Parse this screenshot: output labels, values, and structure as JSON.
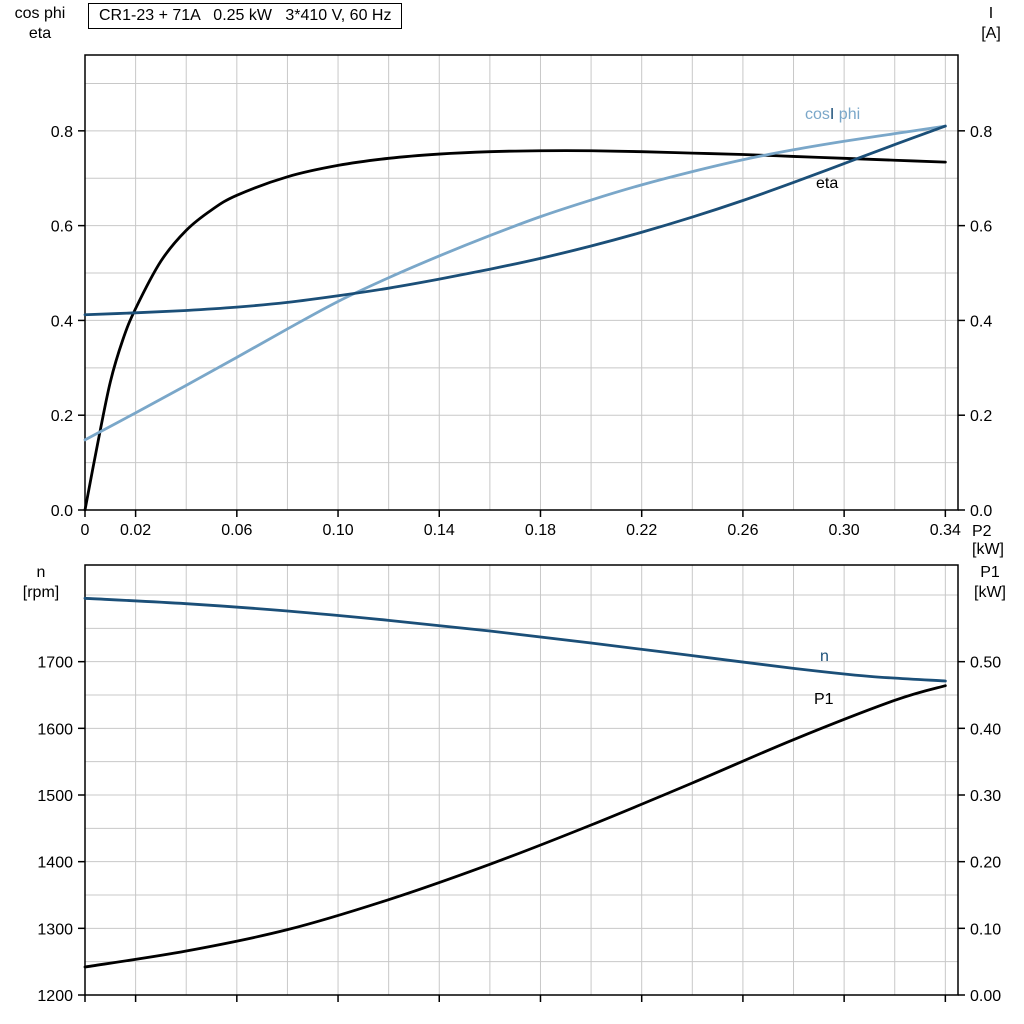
{
  "header": {
    "title": "CR1-23 + 71A   0.25 kW   3*410 V, 60 Hz"
  },
  "axes": {
    "top_left": {
      "line1": "cos phi",
      "line2": "eta"
    },
    "top_right": {
      "line1": "I",
      "line2": "[A]"
    },
    "x_label": "P2 [kW]",
    "bottom_left": {
      "line1": "n",
      "line2": "[rpm]"
    },
    "bottom_right": {
      "line1": "P1",
      "line2": "[kW]"
    }
  },
  "series_labels": {
    "cos_part": "cos",
    "current": "I",
    "phi_part": " phi",
    "eta": "eta",
    "n": "n",
    "p1": "P1"
  },
  "colors": {
    "black": "#000000",
    "dark_blue": "#1b4f78",
    "light_blue": "#7aa7c9",
    "grid": "#c8c8c8",
    "background": "#ffffff"
  },
  "chart_data": [
    {
      "type": "line",
      "title": "CR1-23 + 71A   0.25 kW   3*410 V, 60 Hz",
      "grid": {
        "x_step": 0.02,
        "y_step": 0.1
      },
      "x_axis": {
        "label": "P2 [kW]",
        "range": [
          0,
          0.345
        ],
        "ticks": [
          [
            0,
            "0"
          ],
          [
            0.02,
            "0.02"
          ],
          [
            0.06,
            "0.06"
          ],
          [
            0.1,
            "0.10"
          ],
          [
            0.14,
            "0.14"
          ],
          [
            0.18,
            "0.18"
          ],
          [
            0.22,
            "0.22"
          ],
          [
            0.26,
            "0.26"
          ],
          [
            0.3,
            "0.30"
          ],
          [
            0.34,
            "0.34"
          ]
        ]
      },
      "y_axis_left": {
        "label": "cos phi / eta",
        "range": [
          0,
          0.96
        ],
        "ticks": [
          [
            0,
            "0.0"
          ],
          [
            0.2,
            "0.2"
          ],
          [
            0.4,
            "0.4"
          ],
          [
            0.6,
            "0.6"
          ],
          [
            0.8,
            "0.8"
          ]
        ]
      },
      "y_axis_right": {
        "label": "I [A]",
        "range": [
          0,
          0.96
        ],
        "ticks": [
          [
            0,
            "0.0"
          ],
          [
            0.2,
            "0.2"
          ],
          [
            0.4,
            "0.4"
          ],
          [
            0.6,
            "0.6"
          ],
          [
            0.8,
            "0.8"
          ]
        ]
      },
      "series": [
        {
          "name": "eta",
          "axis": "left",
          "color": "#000000",
          "points": [
            [
              0,
              0
            ],
            [
              0.005,
              0.14
            ],
            [
              0.01,
              0.27
            ],
            [
              0.015,
              0.36
            ],
            [
              0.02,
              0.425
            ],
            [
              0.03,
              0.525
            ],
            [
              0.04,
              0.59
            ],
            [
              0.05,
              0.633
            ],
            [
              0.06,
              0.664
            ],
            [
              0.08,
              0.703
            ],
            [
              0.1,
              0.727
            ],
            [
              0.12,
              0.742
            ],
            [
              0.14,
              0.751
            ],
            [
              0.16,
              0.756
            ],
            [
              0.18,
              0.758
            ],
            [
              0.2,
              0.758
            ],
            [
              0.22,
              0.756
            ],
            [
              0.24,
              0.753
            ],
            [
              0.26,
              0.75
            ],
            [
              0.28,
              0.746
            ],
            [
              0.3,
              0.742
            ],
            [
              0.32,
              0.738
            ],
            [
              0.34,
              0.734
            ]
          ]
        },
        {
          "name": "cos phi",
          "axis": "left",
          "color": "#7aa7c9",
          "points": [
            [
              0,
              0.148
            ],
            [
              0.02,
              0.205
            ],
            [
              0.04,
              0.263
            ],
            [
              0.06,
              0.322
            ],
            [
              0.08,
              0.382
            ],
            [
              0.1,
              0.44
            ],
            [
              0.12,
              0.49
            ],
            [
              0.14,
              0.536
            ],
            [
              0.16,
              0.579
            ],
            [
              0.18,
              0.619
            ],
            [
              0.2,
              0.654
            ],
            [
              0.22,
              0.686
            ],
            [
              0.24,
              0.714
            ],
            [
              0.26,
              0.739
            ],
            [
              0.28,
              0.76
            ],
            [
              0.3,
              0.778
            ],
            [
              0.32,
              0.794
            ],
            [
              0.34,
              0.81
            ]
          ]
        },
        {
          "name": "I",
          "axis": "right",
          "color": "#1b4f78",
          "points": [
            [
              0,
              0.412
            ],
            [
              0.02,
              0.416
            ],
            [
              0.04,
              0.421
            ],
            [
              0.06,
              0.428
            ],
            [
              0.08,
              0.438
            ],
            [
              0.1,
              0.452
            ],
            [
              0.12,
              0.468
            ],
            [
              0.14,
              0.487
            ],
            [
              0.16,
              0.508
            ],
            [
              0.18,
              0.531
            ],
            [
              0.2,
              0.557
            ],
            [
              0.22,
              0.586
            ],
            [
              0.24,
              0.618
            ],
            [
              0.26,
              0.653
            ],
            [
              0.28,
              0.691
            ],
            [
              0.3,
              0.731
            ],
            [
              0.32,
              0.771
            ],
            [
              0.34,
              0.81
            ]
          ]
        }
      ]
    },
    {
      "type": "line",
      "title": "",
      "grid": {
        "x_step": 0.02,
        "y_step": 50
      },
      "x_axis": {
        "label": "",
        "range": [
          0,
          0.345
        ],
        "ticks": [
          [
            0,
            ""
          ],
          [
            0.02,
            ""
          ],
          [
            0.06,
            ""
          ],
          [
            0.1,
            ""
          ],
          [
            0.14,
            ""
          ],
          [
            0.18,
            ""
          ],
          [
            0.22,
            ""
          ],
          [
            0.26,
            ""
          ],
          [
            0.3,
            ""
          ],
          [
            0.34,
            ""
          ]
        ]
      },
      "y_axis_left": {
        "label": "n [rpm]",
        "range": [
          1200,
          1845
        ],
        "ticks": [
          [
            1200,
            "1200"
          ],
          [
            1300,
            "1300"
          ],
          [
            1400,
            "1400"
          ],
          [
            1500,
            "1500"
          ],
          [
            1600,
            "1600"
          ],
          [
            1700,
            "1700"
          ]
        ]
      },
      "y_axis_right": {
        "label": "P1 [kW]",
        "range": [
          0,
          0.645
        ],
        "ticks": [
          [
            0,
            "0.00"
          ],
          [
            0.1,
            "0.10"
          ],
          [
            0.2,
            "0.20"
          ],
          [
            0.3,
            "0.30"
          ],
          [
            0.4,
            "0.40"
          ],
          [
            0.5,
            "0.50"
          ]
        ]
      },
      "series": [
        {
          "name": "n",
          "axis": "left",
          "color": "#1b4f78",
          "points": [
            [
              0,
              1795
            ],
            [
              0.04,
              1787
            ],
            [
              0.08,
              1776
            ],
            [
              0.12,
              1762
            ],
            [
              0.16,
              1746
            ],
            [
              0.2,
              1728
            ],
            [
              0.24,
              1709
            ],
            [
              0.28,
              1690
            ],
            [
              0.31,
              1678
            ],
            [
              0.34,
              1671
            ]
          ]
        },
        {
          "name": "P1",
          "axis": "right",
          "color": "#000000",
          "points": [
            [
              0,
              0.042
            ],
            [
              0.04,
              0.066
            ],
            [
              0.08,
              0.098
            ],
            [
              0.12,
              0.143
            ],
            [
              0.16,
              0.196
            ],
            [
              0.2,
              0.255
            ],
            [
              0.24,
              0.318
            ],
            [
              0.28,
              0.383
            ],
            [
              0.32,
              0.442
            ],
            [
              0.34,
              0.464
            ]
          ]
        }
      ]
    }
  ]
}
